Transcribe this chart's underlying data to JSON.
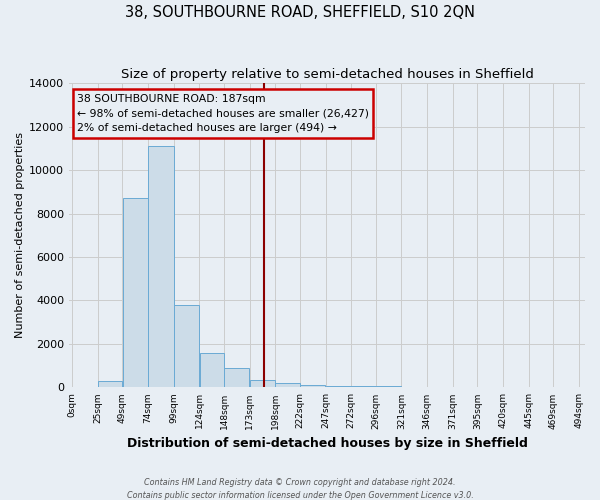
{
  "title": "38, SOUTHBOURNE ROAD, SHEFFIELD, S10 2QN",
  "subtitle": "Size of property relative to semi-detached houses in Sheffield",
  "xlabel": "Distribution of semi-detached houses by size in Sheffield",
  "ylabel": "Number of semi-detached properties",
  "footer1": "Contains HM Land Registry data © Crown copyright and database right 2024.",
  "footer2": "Contains public sector information licensed under the Open Government Licence v3.0.",
  "annotation_line1": "38 SOUTHBOURNE ROAD: 187sqm",
  "annotation_line2": "← 98% of semi-detached houses are smaller (26,427)",
  "annotation_line3": "2% of semi-detached houses are larger (494) →",
  "bar_left_edges": [
    0,
    25,
    49,
    74,
    99,
    124,
    148,
    173,
    198,
    222,
    247,
    272,
    296,
    321,
    346,
    371,
    395,
    420,
    445,
    469
  ],
  "bar_widths": [
    25,
    24,
    25,
    25,
    25,
    24,
    25,
    25,
    24,
    25,
    25,
    24,
    25,
    25,
    25,
    24,
    25,
    25,
    24,
    25
  ],
  "bar_heights": [
    0,
    300,
    8700,
    11100,
    3800,
    1600,
    900,
    350,
    200,
    100,
    75,
    50,
    50,
    0,
    0,
    0,
    0,
    0,
    0,
    0
  ],
  "bar_color": "#ccdce8",
  "bar_edge_color": "#6aaad4",
  "vline_x": 187,
  "vline_color": "#8b0000",
  "annotation_box_color": "#cc0000",
  "tick_labels": [
    "0sqm",
    "25sqm",
    "49sqm",
    "74sqm",
    "99sqm",
    "124sqm",
    "148sqm",
    "173sqm",
    "198sqm",
    "222sqm",
    "247sqm",
    "272sqm",
    "296sqm",
    "321sqm",
    "346sqm",
    "371sqm",
    "395sqm",
    "420sqm",
    "445sqm",
    "469sqm",
    "494sqm"
  ],
  "ylim": [
    0,
    14000
  ],
  "yticks": [
    0,
    2000,
    4000,
    6000,
    8000,
    10000,
    12000,
    14000
  ],
  "grid_color": "#cccccc",
  "bg_color": "#e8eef4",
  "title_fontsize": 10.5,
  "subtitle_fontsize": 9.5
}
